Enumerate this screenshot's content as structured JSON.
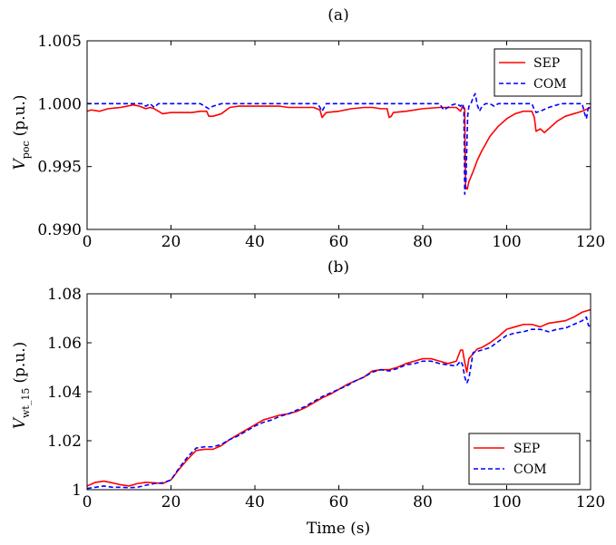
{
  "chart_data": [
    {
      "panel_label": "(a)",
      "type": "line",
      "ylabel": {
        "base": "V",
        "sub": "poc",
        "unit": "(p.u.)"
      },
      "xlim": [
        0,
        120
      ],
      "ylim": [
        0.99,
        1.005
      ],
      "xticks": [
        0,
        20,
        40,
        60,
        80,
        100,
        120
      ],
      "yticks": [
        0.99,
        0.995,
        1.0,
        1.005
      ],
      "ytick_labels": [
        "0.990",
        "0.995",
        "1.000",
        "1.005"
      ],
      "legend_position": "top-right",
      "series": [
        {
          "name": "SEP",
          "color": "#ff0000",
          "dash": "solid",
          "x": [
            0,
            1,
            3,
            5,
            8,
            11,
            12.5,
            14,
            15,
            16,
            17,
            18,
            20,
            22,
            25,
            27,
            28.5,
            29,
            30,
            31,
            32,
            34,
            36,
            40,
            44,
            46,
            48,
            50,
            52,
            54,
            55.5,
            56,
            56.5,
            57,
            60,
            63,
            66,
            68,
            70,
            71.5,
            72,
            72.5,
            73,
            76,
            80,
            84,
            86,
            88,
            89,
            89.5,
            90,
            90.2,
            90.6,
            91,
            92,
            93,
            94,
            95,
            96,
            98,
            100,
            102,
            104,
            106,
            106.6,
            107,
            108,
            109,
            110,
            112,
            114,
            116,
            118,
            120
          ],
          "y": [
            0.9994,
            0.9995,
            0.9994,
            0.9996,
            0.9997,
            0.9999,
            0.9998,
            0.9996,
            0.9997,
            0.9996,
            0.9994,
            0.9992,
            0.9993,
            0.9993,
            0.9993,
            0.9994,
            0.9994,
            0.999,
            0.999,
            0.9991,
            0.9992,
            0.9997,
            0.9998,
            0.9998,
            0.9998,
            0.9998,
            0.9997,
            0.9997,
            0.9997,
            0.9997,
            0.9995,
            0.9989,
            0.9991,
            0.9993,
            0.9994,
            0.9996,
            0.9997,
            0.9997,
            0.9996,
            0.9996,
            0.9989,
            0.999,
            0.9993,
            0.9994,
            0.9996,
            0.9997,
            0.9997,
            0.9997,
            0.9994,
            0.9998,
            0.9996,
            0.9934,
            0.9932,
            0.9938,
            0.9946,
            0.9955,
            0.9962,
            0.9968,
            0.9974,
            0.9982,
            0.9988,
            0.9992,
            0.9994,
            0.9994,
            0.9989,
            0.9978,
            0.998,
            0.9977,
            0.998,
            0.9986,
            0.999,
            0.9992,
            0.9994,
            0.9997
          ]
        },
        {
          "name": "COM",
          "color": "#0000ff",
          "dash": "dashed",
          "x": [
            0,
            10,
            13,
            14,
            15,
            16,
            17,
            20,
            25,
            27,
            28,
            29,
            30,
            31,
            32,
            34,
            40,
            50,
            55,
            56,
            56.5,
            57,
            60,
            70,
            84,
            85,
            86,
            87,
            88,
            89,
            89.5,
            89.8,
            90,
            90.3,
            90.7,
            91,
            91.5,
            92,
            92.5,
            93,
            93.5,
            94,
            94.5,
            95,
            96,
            97,
            98,
            100,
            104,
            106,
            106.5,
            107,
            108,
            110,
            113,
            116,
            118,
            118.5,
            119,
            119.4,
            120
          ],
          "y": [
            1.0,
            1.0,
            1.0,
            0.9998,
            1.0,
            0.9997,
            1.0,
            1.0,
            1.0,
            1.0,
            0.9998,
            0.9996,
            0.9998,
            0.9999,
            1.0,
            1.0,
            1.0,
            1.0,
            1.0,
            0.9994,
            0.9997,
            1.0,
            1.0,
            1.0,
            1.0,
            0.9995,
            0.9997,
            0.9999,
            1.0,
            0.9998,
            1.0,
            0.9996,
            0.9928,
            0.9939,
            0.999,
            0.9998,
            1.0,
            1.0005,
            1.0008,
            0.9999,
            0.9994,
            0.9997,
            0.9999,
            1.0,
            1.0,
            0.9998,
            1.0,
            1.0,
            1.0,
            1.0,
            0.9996,
            0.9993,
            0.9994,
            0.9997,
            1.0,
            1.0,
            1.0,
            0.9993,
            0.9988,
            0.9996,
            1.0
          ]
        }
      ]
    },
    {
      "panel_label": "(b)",
      "type": "line",
      "xlabel": "Time (s)",
      "ylabel": {
        "base": "V",
        "sub": "wt_15",
        "unit": "(p.u.)"
      },
      "xlim": [
        0,
        120
      ],
      "ylim": [
        1.0,
        1.08
      ],
      "xticks": [
        0,
        20,
        40,
        60,
        80,
        100,
        120
      ],
      "yticks": [
        1.0,
        1.02,
        1.04,
        1.06,
        1.08
      ],
      "ytick_labels": [
        "1",
        "1.02",
        "1.04",
        "1.06",
        "1.08"
      ],
      "legend_position": "bottom-right",
      "series": [
        {
          "name": "SEP",
          "color": "#ff0000",
          "dash": "solid",
          "x": [
            0,
            2,
            4,
            6,
            8,
            10,
            12,
            14,
            16,
            18,
            20,
            22,
            24,
            26,
            28,
            30,
            32,
            34,
            36,
            38,
            40,
            42,
            44,
            46,
            48,
            50,
            52,
            54,
            56,
            58,
            60,
            62,
            64,
            66,
            68,
            70,
            72,
            74,
            76,
            78,
            80,
            82,
            84,
            86,
            88,
            89,
            89.5,
            90,
            90.5,
            91,
            92,
            93,
            94,
            95,
            96,
            98,
            100,
            102,
            104,
            106,
            108,
            110,
            112,
            114,
            116,
            118,
            119,
            120
          ],
          "y": [
            1.0015,
            1.003,
            1.0035,
            1.0028,
            1.002,
            1.0015,
            1.0025,
            1.003,
            1.0028,
            1.0025,
            1.004,
            1.0085,
            1.0125,
            1.016,
            1.0165,
            1.0165,
            1.018,
            1.0205,
            1.0225,
            1.0245,
            1.0265,
            1.0285,
            1.0295,
            1.0305,
            1.031,
            1.032,
            1.0335,
            1.0355,
            1.0375,
            1.039,
            1.041,
            1.043,
            1.0445,
            1.046,
            1.0485,
            1.049,
            1.049,
            1.05,
            1.0515,
            1.0525,
            1.0535,
            1.0535,
            1.0525,
            1.0515,
            1.0525,
            1.057,
            1.057,
            1.052,
            1.048,
            1.0535,
            1.0555,
            1.0575,
            1.058,
            1.059,
            1.06,
            1.0625,
            1.0655,
            1.0665,
            1.0675,
            1.0675,
            1.0665,
            1.068,
            1.0685,
            1.069,
            1.0705,
            1.0725,
            1.073,
            1.0735
          ]
        },
        {
          "name": "COM",
          "color": "#0000ff",
          "dash": "dashed",
          "x": [
            0,
            2,
            4,
            6,
            8,
            10,
            12,
            14,
            16,
            18,
            20,
            22,
            24,
            26,
            28,
            30,
            32,
            34,
            36,
            38,
            40,
            42,
            44,
            46,
            48,
            50,
            52,
            54,
            56,
            58,
            60,
            62,
            64,
            66,
            68,
            70,
            72,
            74,
            76,
            78,
            80,
            82,
            84,
            86,
            88,
            89,
            89.5,
            90,
            90.5,
            91,
            92,
            94,
            96,
            98,
            100,
            102,
            104,
            106,
            108,
            110,
            112,
            114,
            116,
            118,
            119,
            119.5,
            120
          ],
          "y": [
            1.0005,
            1.001,
            1.0015,
            1.001,
            1.001,
            1.0008,
            1.001,
            1.0018,
            1.0025,
            1.0028,
            1.004,
            1.009,
            1.0135,
            1.017,
            1.0175,
            1.0175,
            1.0185,
            1.0205,
            1.022,
            1.024,
            1.026,
            1.0275,
            1.0285,
            1.03,
            1.031,
            1.0325,
            1.034,
            1.036,
            1.038,
            1.0395,
            1.041,
            1.0425,
            1.0445,
            1.046,
            1.048,
            1.049,
            1.0485,
            1.0495,
            1.051,
            1.0515,
            1.0525,
            1.0525,
            1.0515,
            1.051,
            1.0505,
            1.0525,
            1.051,
            1.046,
            1.0435,
            1.0455,
            1.056,
            1.057,
            1.058,
            1.0605,
            1.063,
            1.064,
            1.0645,
            1.0655,
            1.0655,
            1.0645,
            1.0655,
            1.066,
            1.0675,
            1.069,
            1.0705,
            1.067,
            1.0668
          ]
        }
      ]
    }
  ]
}
